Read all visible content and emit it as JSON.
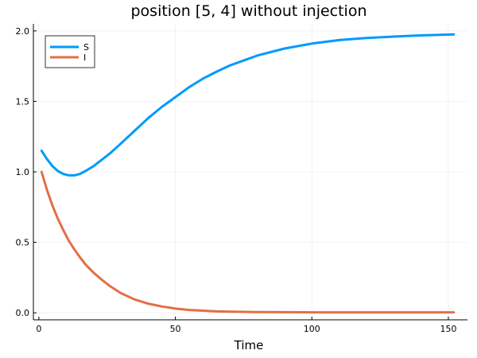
{
  "chart_data": {
    "type": "line",
    "title": "position [5, 4] without injection",
    "xlabel": "Time",
    "ylabel": "",
    "xlim": [
      -2,
      157
    ],
    "ylim": [
      -0.05,
      2.05
    ],
    "xticks": [
      0,
      50,
      100,
      150
    ],
    "yticks": [
      0.0,
      0.5,
      1.0,
      1.5,
      2.0
    ],
    "xtick_labels": [
      "0",
      "50",
      "100",
      "150"
    ],
    "ytick_labels": [
      "0.0",
      "0.5",
      "1.0",
      "1.5",
      "2.0"
    ],
    "grid": true,
    "legend_position": "top-left",
    "series": [
      {
        "name": "S",
        "color": "#009AFA",
        "x": [
          1,
          3,
          5,
          7,
          9,
          11,
          13,
          15,
          17,
          20,
          23,
          26,
          30,
          35,
          40,
          45,
          50,
          55,
          60,
          65,
          70,
          75,
          80,
          90,
          100,
          110,
          120,
          130,
          140,
          152
        ],
        "y": [
          1.15,
          1.09,
          1.04,
          1.005,
          0.985,
          0.975,
          0.975,
          0.985,
          1.005,
          1.04,
          1.085,
          1.13,
          1.2,
          1.29,
          1.38,
          1.46,
          1.53,
          1.6,
          1.66,
          1.71,
          1.755,
          1.79,
          1.825,
          1.875,
          1.91,
          1.935,
          1.95,
          1.96,
          1.968,
          1.975
        ]
      },
      {
        "name": "I",
        "color": "#E26F46",
        "x": [
          1,
          3,
          5,
          7,
          9,
          11,
          13,
          15,
          17,
          20,
          23,
          26,
          30,
          35,
          40,
          45,
          50,
          55,
          60,
          65,
          70,
          80,
          90,
          100,
          120,
          140,
          152
        ],
        "y": [
          1.0,
          0.87,
          0.76,
          0.665,
          0.585,
          0.51,
          0.45,
          0.395,
          0.345,
          0.285,
          0.235,
          0.19,
          0.14,
          0.095,
          0.065,
          0.045,
          0.03,
          0.02,
          0.015,
          0.01,
          0.008,
          0.005,
          0.004,
          0.003,
          0.003,
          0.003,
          0.003
        ]
      }
    ]
  }
}
